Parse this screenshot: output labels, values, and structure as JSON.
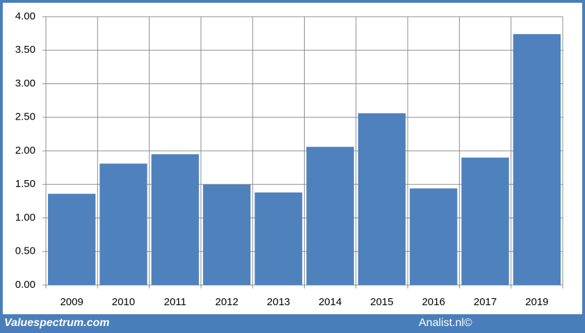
{
  "chart_data": {
    "type": "bar",
    "categories": [
      "2009",
      "2010",
      "2011",
      "2012",
      "2013",
      "2014",
      "2015",
      "2016",
      "2017",
      "2019"
    ],
    "values": [
      1.36,
      1.81,
      1.95,
      1.5,
      1.38,
      2.06,
      2.56,
      1.44,
      1.9,
      3.74
    ],
    "color": "#4f81bd",
    "ylim": [
      0,
      4
    ],
    "yticks": [
      {
        "value": 0,
        "label": "0.00"
      },
      {
        "value": 0.5,
        "label": "0.50"
      },
      {
        "value": 1,
        "label": "1.00"
      },
      {
        "value": 1.5,
        "label": "1.50"
      },
      {
        "value": 2,
        "label": "2.00"
      },
      {
        "value": 2.5,
        "label": "2.50"
      },
      {
        "value": 3,
        "label": "3.00"
      },
      {
        "value": 3.5,
        "label": "3.50"
      },
      {
        "value": 4,
        "label": "4.00"
      }
    ],
    "grid": true
  },
  "footer": {
    "left": "Valuespectrum.com",
    "right": "Analist.nl©"
  }
}
